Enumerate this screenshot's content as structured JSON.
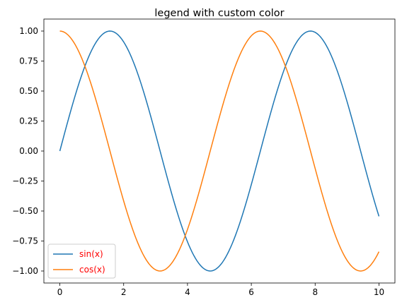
{
  "chart_data": {
    "type": "line",
    "title": "legend with custom color",
    "xlabel": "",
    "ylabel": "",
    "xlim": [
      -0.5,
      10.5
    ],
    "ylim": [
      -1.1,
      1.1
    ],
    "x_ticks": [
      0,
      2,
      4,
      6,
      8,
      10
    ],
    "x_tick_labels": [
      "0",
      "2",
      "4",
      "6",
      "8",
      "10"
    ],
    "y_ticks": [
      1.0,
      0.75,
      0.5,
      0.25,
      0.0,
      -0.25,
      -0.5,
      -0.75,
      -1.0
    ],
    "y_tick_labels": [
      "1.00",
      "0.75",
      "0.50",
      "0.25",
      "0.00",
      "−0.25",
      "−0.50",
      "−0.75",
      "−1.00"
    ],
    "grid": false,
    "legend": {
      "placement": "lower-left",
      "text_color": "#ff0000"
    },
    "x_range": [
      0,
      10
    ],
    "sample_count": 201,
    "series": [
      {
        "name": "sin(x)",
        "function": "sin",
        "color": "#1f77b4"
      },
      {
        "name": "cos(x)",
        "function": "cos",
        "color": "#ff7f0e"
      }
    ]
  }
}
